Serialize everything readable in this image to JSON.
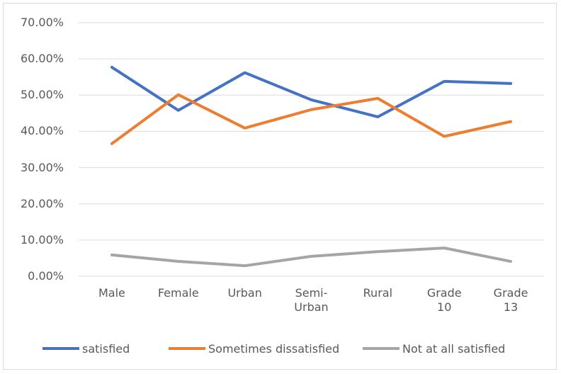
{
  "chart_data": {
    "type": "line",
    "categories": [
      "Male",
      "Female",
      "Urban",
      "Semi-Urban",
      "Rural",
      "Grade 10",
      "Grade 13"
    ],
    "series": [
      {
        "name": "satisfied",
        "color": "#4472c4",
        "values": [
          57.7,
          45.8,
          56.2,
          48.7,
          44.0,
          53.8,
          53.2
        ]
      },
      {
        "name": "Sometimes dissatisfied",
        "color": "#ed7d31",
        "values": [
          36.6,
          50.1,
          40.9,
          46.0,
          49.1,
          38.6,
          42.7
        ]
      },
      {
        "name": "Not at all satisfied",
        "color": "#a5a5a5",
        "values": [
          5.9,
          4.1,
          2.9,
          5.5,
          6.8,
          7.8,
          4.1
        ]
      }
    ],
    "ylim": [
      0,
      70
    ],
    "yticks": [
      {
        "value": 0,
        "label": "0.00%"
      },
      {
        "value": 10,
        "label": "10.00%"
      },
      {
        "value": 20,
        "label": "20.00%"
      },
      {
        "value": 30,
        "label": "30.00%"
      },
      {
        "value": 40,
        "label": "40.00%"
      },
      {
        "value": 50,
        "label": "50.00%"
      },
      {
        "value": 60,
        "label": "60.00%"
      },
      {
        "value": 70,
        "label": "70.00%"
      }
    ],
    "grid": true,
    "legend": "bottom"
  }
}
